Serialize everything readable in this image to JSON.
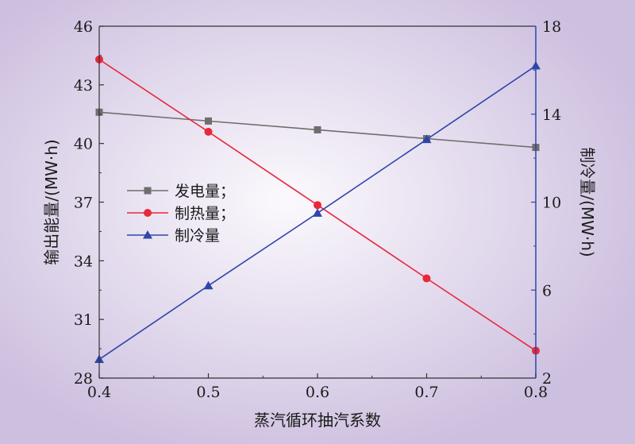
{
  "chart_data": {
    "type": "line",
    "xlabel": "蒸汽循环抽汽系数",
    "ylabel_left": "输出能量/(MW·h)",
    "ylabel_right": "制冷量/(MW·h)",
    "x": [
      0.4,
      0.5,
      0.6,
      0.7,
      0.8
    ],
    "x_ticks": [
      "0.4",
      "0.5",
      "0.6",
      "0.7",
      "0.8"
    ],
    "xlim": [
      0.4,
      0.8
    ],
    "ylim_left": [
      28,
      46
    ],
    "y_ticks_left": [
      "28",
      "31",
      "34",
      "37",
      "40",
      "43",
      "46"
    ],
    "ylim_right": [
      2,
      18
    ],
    "y_ticks_right": [
      "2",
      "6",
      "10",
      "14",
      "18"
    ],
    "grid": false,
    "legend_position": "left-middle",
    "series": [
      {
        "name": "发电量；",
        "axis": "left",
        "marker": "square",
        "color": "#6e6e6e",
        "values": [
          41.6,
          41.15,
          40.7,
          40.25,
          39.8
        ]
      },
      {
        "name": "制热量；",
        "axis": "left",
        "marker": "circle",
        "color": "#e8283c",
        "values": [
          44.3,
          40.6,
          36.85,
          33.1,
          29.4
        ]
      },
      {
        "name": "制冷量",
        "axis": "right",
        "marker": "triangle",
        "color": "#2f46a8",
        "values": [
          2.85,
          6.2,
          9.5,
          12.85,
          16.2
        ]
      }
    ]
  }
}
